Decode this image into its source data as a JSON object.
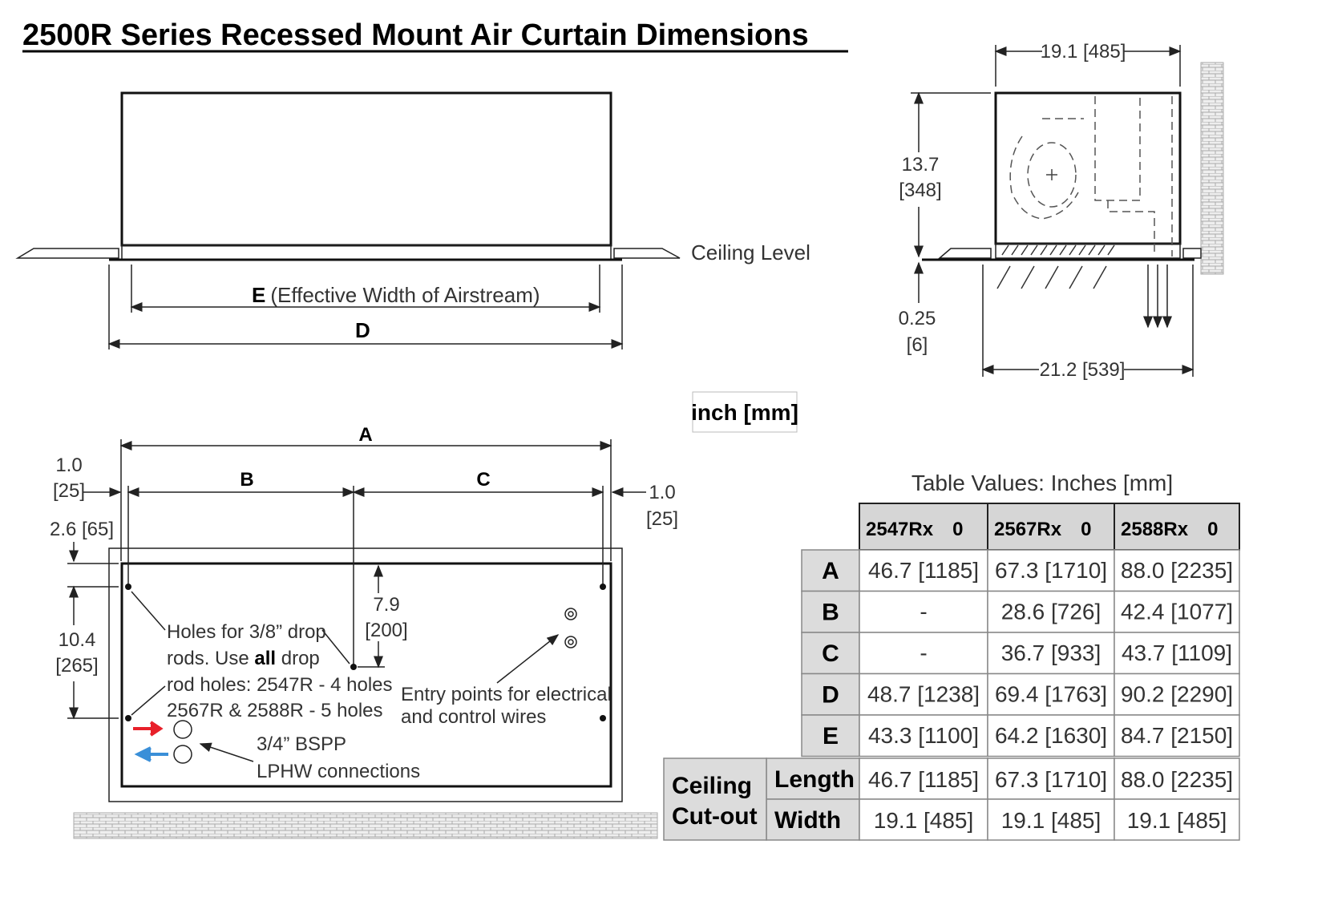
{
  "title": "2500R Series Recessed Mount  Air Curtain Dimensions",
  "front_view": {
    "ceiling_label": "Ceiling Level",
    "dim_e_letter": "E",
    "dim_e_text": "(Effective Width of Airstream)",
    "dim_d": "D"
  },
  "side_view": {
    "width_top": "19.1 [485]",
    "height_in": "13.7",
    "height_mm": "[348]",
    "gap_in": "0.25",
    "gap_mm": "[6]",
    "width_bottom": "21.2 [539]"
  },
  "units_label": "inch [mm]",
  "plan_view": {
    "dim_a": "A",
    "dim_b": "B",
    "dim_c": "C",
    "left_offset_in": "1.0",
    "left_offset_mm": "[25]",
    "right_offset_in": "1.0",
    "right_offset_mm": "[25]",
    "top_offset": "2.6 [65]",
    "hole_spacing_in": "10.4",
    "hole_spacing_mm": "[265]",
    "mid_offset_in": "7.9",
    "mid_offset_mm": "[200]",
    "holes_note": [
      "Holes for 3/8” drop",
      "rods. Use ",
      "all",
      " drop",
      "rod holes: 2547R - 4 holes",
      "2567R & 2588R - 5 holes"
    ],
    "entry_note": [
      "Entry points for electrical",
      "and control wires"
    ],
    "lphw_note": [
      "3/4” BSPP",
      "LPHW connections"
    ],
    "flow_in_color": "#e8202a",
    "flow_out_color": "#3a8fd8"
  },
  "table": {
    "caption": "Table Values: Inches [mm]",
    "columns": [
      {
        "model": "2547Rx",
        "suffix": "0"
      },
      {
        "model": "2567Rx",
        "suffix": "0"
      },
      {
        "model": "2588Rx",
        "suffix": "0"
      }
    ],
    "rows": [
      {
        "label": "A",
        "values": [
          "46.7 [1185]",
          "67.3 [1710]",
          "88.0 [2235]"
        ]
      },
      {
        "label": "B",
        "values": [
          "-",
          "28.6 [726]",
          "42.4 [1077]"
        ]
      },
      {
        "label": "C",
        "values": [
          "-",
          "36.7 [933]",
          "43.7 [1109]"
        ]
      },
      {
        "label": "D",
        "values": [
          "48.7 [1238]",
          "69.4 [1763]",
          "90.2 [2290]"
        ]
      },
      {
        "label": "E",
        "values": [
          "43.3 [1100]",
          "64.2 [1630]",
          "84.7 [2150]"
        ]
      }
    ],
    "cutout_label": [
      "Ceiling",
      "Cut-out"
    ],
    "cutout_rows": [
      {
        "label": "Length",
        "values": [
          "46.7 [1185]",
          "67.3 [1710]",
          "88.0 [2235]"
        ]
      },
      {
        "label": "Width",
        "values": [
          "19.1 [485]",
          "19.1 [485]",
          "19.1 [485]"
        ]
      }
    ]
  }
}
